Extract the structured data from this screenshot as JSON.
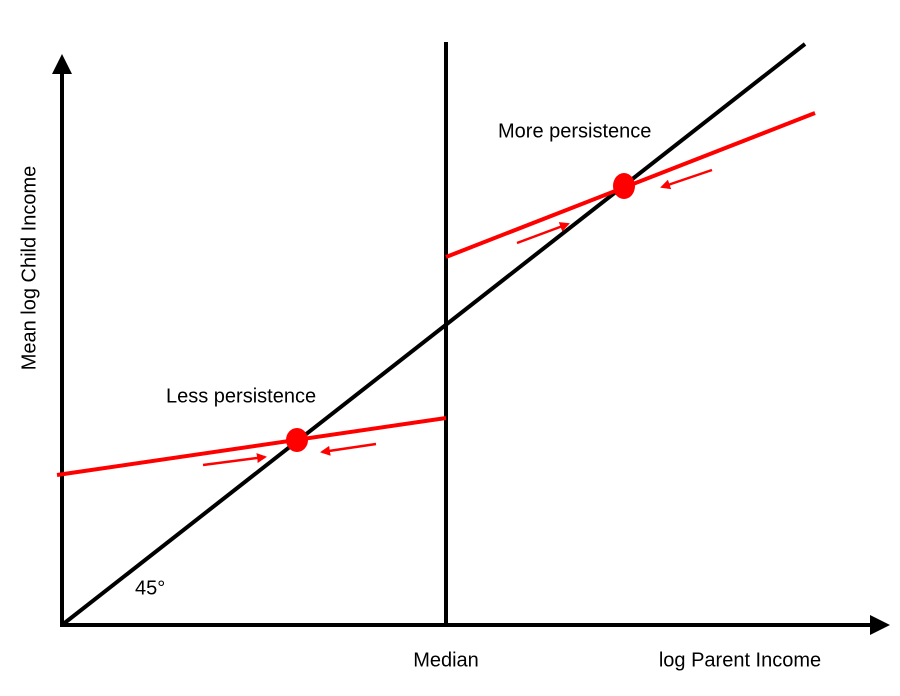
{
  "axes": {
    "y_label": "Mean log Child Income",
    "x_label": "log Parent Income",
    "x_marker": "Median"
  },
  "annotations": {
    "angle": "45°",
    "less": "Less persistence",
    "more": "More persistence"
  }
}
